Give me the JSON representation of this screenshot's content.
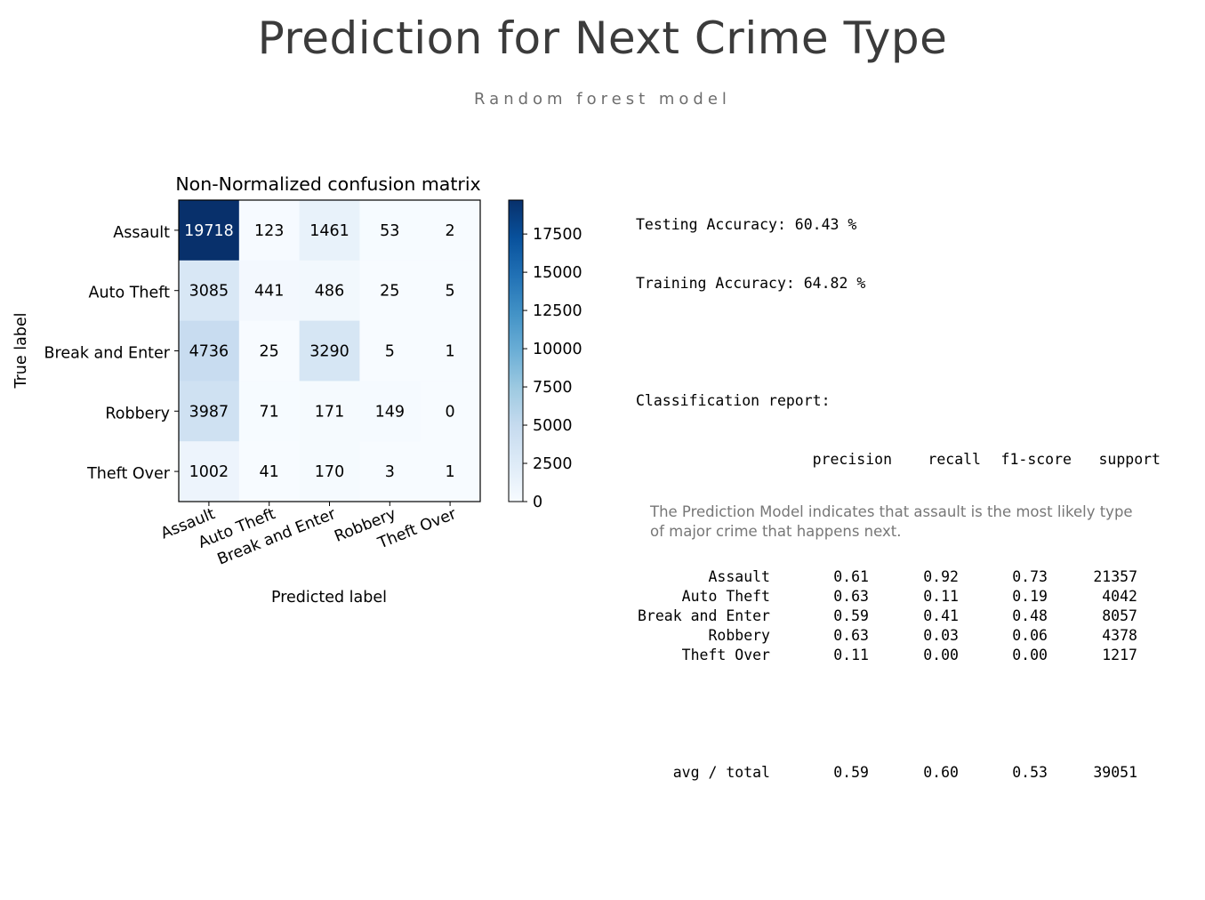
{
  "slide": {
    "title": "Prediction for Next Crime Type",
    "subtitle": "Random forest model"
  },
  "chart_data": {
    "type": "heatmap",
    "title": "Non-Normalized confusion matrix",
    "xlabel": "Predicted label",
    "ylabel": "True label",
    "row_labels": [
      "Assault",
      "Auto Theft",
      "Break and Enter",
      "Robbery",
      "Theft Over"
    ],
    "col_labels": [
      "Assault",
      "Auto Theft",
      "Break and Enter",
      "Robbery",
      "Theft Over"
    ],
    "values": [
      [
        19718,
        123,
        1461,
        53,
        2
      ],
      [
        3085,
        441,
        486,
        25,
        5
      ],
      [
        4736,
        25,
        3290,
        5,
        1
      ],
      [
        3987,
        71,
        171,
        149,
        0
      ],
      [
        1002,
        41,
        170,
        3,
        1
      ]
    ],
    "colormap": "Blues",
    "color_range": [
      0,
      19718
    ],
    "colorbar_ticks": [
      "0",
      "2500",
      "5000",
      "7500",
      "10000",
      "12500",
      "15000",
      "17500"
    ],
    "colorbar_tick_values": [
      0,
      2500,
      5000,
      7500,
      10000,
      12500,
      15000,
      17500
    ]
  },
  "report": {
    "testing_accuracy": "Testing Accuracy: 60.43 %",
    "training_accuracy": "Training Accuracy: 64.82 %",
    "heading": "Classification report:",
    "columns": [
      "precision",
      "recall",
      "f1-score",
      "support"
    ],
    "rows": [
      {
        "label": "Assault",
        "precision": "0.61",
        "recall": "0.92",
        "f1": "0.73",
        "support": "21357"
      },
      {
        "label": "Auto Theft",
        "precision": "0.63",
        "recall": "0.11",
        "f1": "0.19",
        "support": "4042"
      },
      {
        "label": "Break and Enter",
        "precision": "0.59",
        "recall": "0.41",
        "f1": "0.48",
        "support": "8057"
      },
      {
        "label": "Robbery",
        "precision": "0.63",
        "recall": "0.03",
        "f1": "0.06",
        "support": "4378"
      },
      {
        "label": "Theft Over",
        "precision": "0.11",
        "recall": "0.00",
        "f1": "0.00",
        "support": "1217"
      }
    ],
    "avg": {
      "label": "avg / total",
      "precision": "0.59",
      "recall": "0.60",
      "f1": "0.53",
      "support": "39051"
    }
  },
  "conclusion": "The Prediction Model indicates that assault is the most likely type of major crime that happens next."
}
